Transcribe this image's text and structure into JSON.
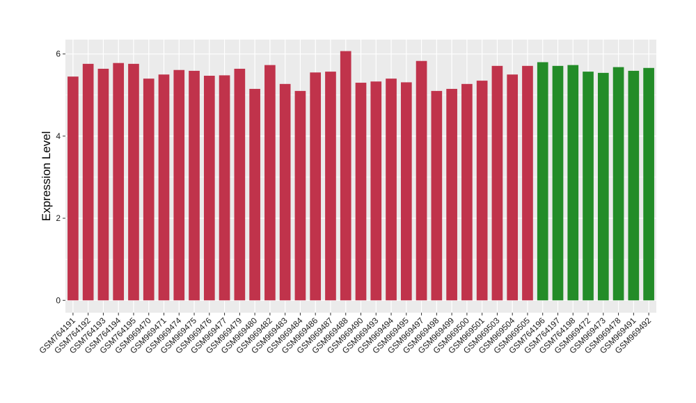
{
  "chart_data": {
    "type": "bar",
    "title": "",
    "xlabel": "",
    "ylabel": "Expression Level",
    "ylim": [
      -0.3,
      6.35
    ],
    "yticks": [
      0,
      2,
      4,
      6
    ],
    "grid": true,
    "legend": "none",
    "colors": {
      "red": "#c0334b",
      "green": "#238c28",
      "panel": "#ebebeb",
      "grid": "#ffffff"
    },
    "categories": [
      "GSM764191",
      "GSM764192",
      "GSM764193",
      "GSM764194",
      "GSM764195",
      "GSM969470",
      "GSM969471",
      "GSM969474",
      "GSM969475",
      "GSM969476",
      "GSM969477",
      "GSM969479",
      "GSM969480",
      "GSM969482",
      "GSM969483",
      "GSM969484",
      "GSM969486",
      "GSM969487",
      "GSM969488",
      "GSM969490",
      "GSM969493",
      "GSM969494",
      "GSM969495",
      "GSM969497",
      "GSM969498",
      "GSM969499",
      "GSM969500",
      "GSM969501",
      "GSM969503",
      "GSM969504",
      "GSM969505",
      "GSM764196",
      "GSM764197",
      "GSM764198",
      "GSM969472",
      "GSM969473",
      "GSM969478",
      "GSM969491",
      "GSM969492"
    ],
    "values": [
      5.45,
      5.76,
      5.64,
      5.78,
      5.76,
      5.4,
      5.5,
      5.61,
      5.59,
      5.47,
      5.48,
      5.64,
      5.15,
      5.73,
      5.27,
      5.1,
      5.55,
      5.57,
      6.07,
      5.3,
      5.33,
      5.4,
      5.31,
      5.83,
      5.1,
      5.15,
      5.27,
      5.35,
      5.71,
      5.5,
      5.71,
      5.8,
      5.71,
      5.73,
      5.57,
      5.54,
      5.68,
      5.59,
      5.66
    ],
    "groups": [
      "red",
      "red",
      "red",
      "red",
      "red",
      "red",
      "red",
      "red",
      "red",
      "red",
      "red",
      "red",
      "red",
      "red",
      "red",
      "red",
      "red",
      "red",
      "red",
      "red",
      "red",
      "red",
      "red",
      "red",
      "red",
      "red",
      "red",
      "red",
      "red",
      "red",
      "red",
      "green",
      "green",
      "green",
      "green",
      "green",
      "green",
      "green",
      "green"
    ]
  }
}
